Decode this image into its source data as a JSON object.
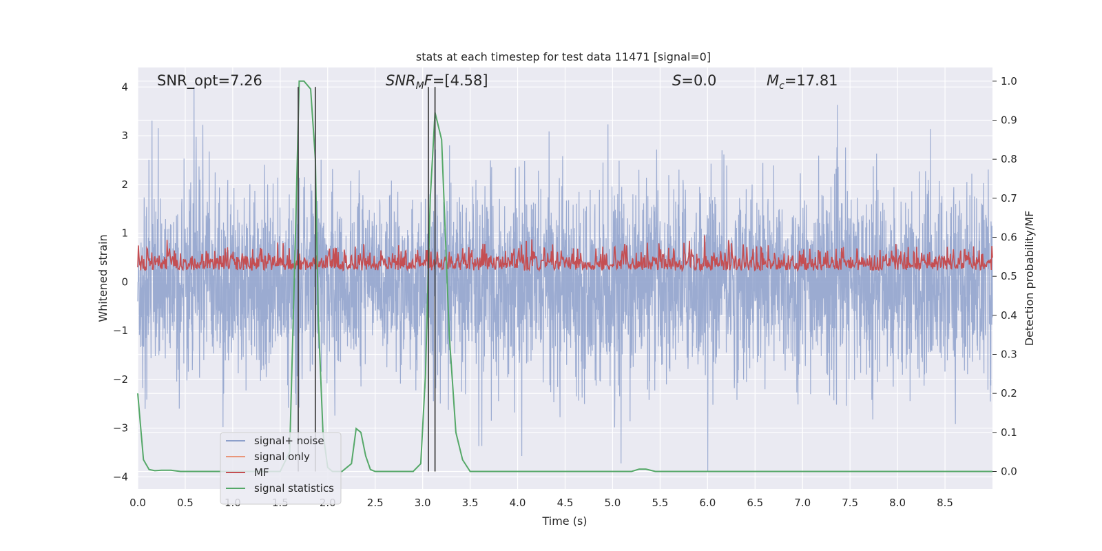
{
  "chart_data": {
    "type": "line",
    "title": "stats at each timestep for test data 11471 [signal=0]",
    "xlabel": "Time (s)",
    "ylabel_left": "Whitened strain",
    "ylabel_right": "Detection probability/MF",
    "xlim": [
      0.0,
      9.0
    ],
    "ylim_left": [
      -4.25,
      4.4
    ],
    "ylim_right": [
      -0.045,
      1.035
    ],
    "grid": true,
    "x_ticks": [
      "0.0",
      "0.5",
      "1.0",
      "1.5",
      "2.0",
      "2.5",
      "3.0",
      "3.5",
      "4.0",
      "4.5",
      "5.0",
      "5.5",
      "6.0",
      "6.5",
      "7.0",
      "7.5",
      "8.0",
      "8.5"
    ],
    "y_ticks_left": [
      "4",
      "3",
      "2",
      "1",
      "0",
      "−1",
      "−2",
      "−3",
      "−4"
    ],
    "y_ticks_right": [
      "1.0",
      "0.9",
      "0.8",
      "0.7",
      "0.6",
      "0.5",
      "0.4",
      "0.3",
      "0.2",
      "0.1",
      "0.0"
    ],
    "annotations": {
      "snr_opt": "SNR_opt=7.26",
      "snr_mf": "=[4.58]",
      "s_value": "=0.0",
      "mc_value": "=17.81"
    },
    "legend": {
      "placement": "lower-left",
      "entries": [
        "signal+ noise",
        "signal only",
        "MF",
        "signal statistics"
      ]
    },
    "colors": {
      "signal_noise": "#8da0cb",
      "signal_only": "#e9967a",
      "mf": "#c44e52",
      "signal_statistics": "#55a868",
      "vlines": "#444444",
      "background": "#eaeaf2",
      "grid": "#ffffff"
    },
    "vertical_lines_x": [
      1.69,
      1.87,
      3.06,
      3.13
    ],
    "series": [
      {
        "name": "signal+ noise",
        "description_values": "dense noise, amplitude mostly within -2 to +2, spikes to about ±4"
      },
      {
        "name": "MF",
        "description_values": "values mostly 0.5-0.58 on right axis, peaks near 0.6"
      },
      {
        "name": "signal statistics",
        "axis": "right",
        "x": [
          0.0,
          0.06,
          0.12,
          0.18,
          0.25,
          0.35,
          0.45,
          1.0,
          1.5,
          1.6,
          1.66,
          1.7,
          1.75,
          1.82,
          1.87,
          1.9,
          1.95,
          2.0,
          2.05,
          2.1,
          2.15,
          2.2,
          2.25,
          2.3,
          2.35,
          2.4,
          2.45,
          2.5,
          2.6,
          2.9,
          2.98,
          3.03,
          3.08,
          3.13,
          3.2,
          3.28,
          3.35,
          3.42,
          3.5,
          3.6,
          5.2,
          5.28,
          5.35,
          5.45,
          9.0
        ],
        "y": [
          0.2,
          0.03,
          0.005,
          0.002,
          0.003,
          0.003,
          0.0,
          0.0,
          0.0,
          0.05,
          0.6,
          1.0,
          1.0,
          0.98,
          0.8,
          0.4,
          0.1,
          0.01,
          0.0,
          0.0,
          0.0,
          0.01,
          0.02,
          0.11,
          0.1,
          0.04,
          0.005,
          0.0,
          0.0,
          0.0,
          0.02,
          0.25,
          0.7,
          0.92,
          0.85,
          0.35,
          0.1,
          0.03,
          0.0,
          0.0,
          0.0,
          0.006,
          0.006,
          0.0,
          0.0
        ]
      }
    ]
  }
}
